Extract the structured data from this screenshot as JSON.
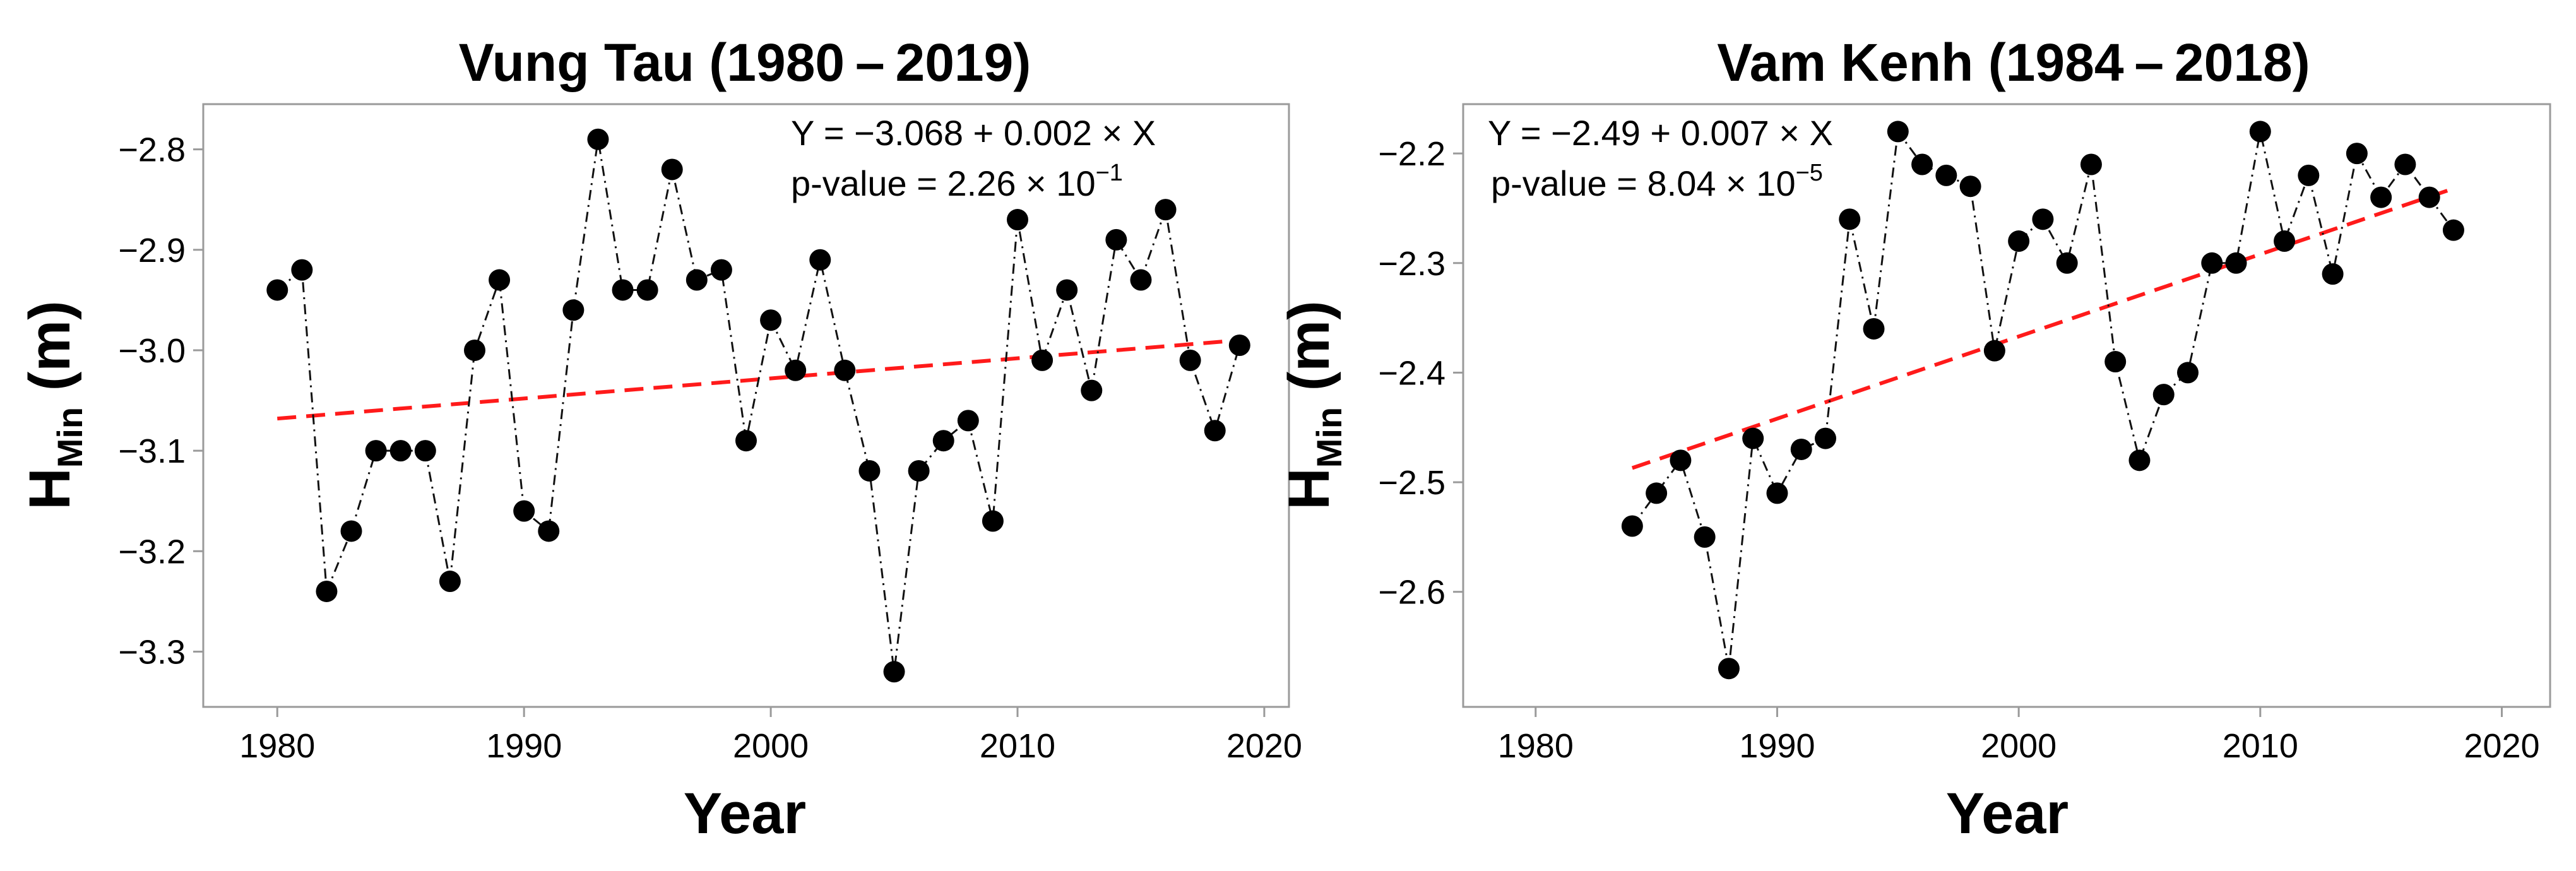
{
  "chart_data": [
    {
      "type": "line",
      "title": "Vung Tau (1980 – 2019)",
      "xlabel": "Year",
      "ylabel": {
        "main": "H",
        "subscript": "Min",
        "unit": "(m)"
      },
      "xlim": [
        1977,
        2021
      ],
      "ylim": [
        -3.355,
        -2.755
      ],
      "xticks": [
        1980,
        1990,
        2000,
        2010,
        2020
      ],
      "xtick_labels": [
        "1980",
        "1990",
        "2000",
        "2010",
        "2020"
      ],
      "yticks": [
        -2.8,
        -2.9,
        -3.0,
        -3.1,
        -3.2,
        -3.3
      ],
      "ytick_labels": [
        "−2.8",
        "−2.9",
        "−3.0",
        "−3.1",
        "−3.2",
        "−3.3"
      ],
      "grid": false,
      "series": [
        {
          "name": "H_Min",
          "style": "dash-dot black with filled circle markers",
          "x": [
            1980,
            1981,
            1982,
            1983,
            1984,
            1985,
            1986,
            1987,
            1988,
            1989,
            1990,
            1991,
            1992,
            1993,
            1994,
            1995,
            1996,
            1997,
            1998,
            1999,
            2000,
            2001,
            2002,
            2003,
            2004,
            2005,
            2006,
            2007,
            2008,
            2009,
            2010,
            2011,
            2012,
            2013,
            2014,
            2015,
            2016,
            2017,
            2018,
            2019
          ],
          "y": [
            -2.94,
            -2.92,
            -3.24,
            -3.18,
            -3.1,
            -3.1,
            -3.1,
            -3.23,
            -3.0,
            -2.93,
            -3.16,
            -3.18,
            -2.96,
            -2.79,
            -2.94,
            -2.94,
            -2.82,
            -2.93,
            -2.92,
            -3.09,
            -2.97,
            -3.02,
            -2.91,
            -3.02,
            -3.12,
            -3.32,
            -3.12,
            -3.09,
            -3.07,
            -3.17,
            -2.87,
            -3.01,
            -2.94,
            -3.04,
            -2.89,
            -2.93,
            -2.86,
            -3.01,
            -3.08,
            -2.995
          ]
        }
      ],
      "trend": {
        "name": "linear trend",
        "color": "#ff1a1a",
        "x": [
          1980,
          2019
        ],
        "intercept": -3.068,
        "slope": 0.002
      },
      "annotation": {
        "equation": "Y = −3.068 + 0.002 × X",
        "pvalue_base": "p-value = 2.26 × 10",
        "pvalue_exp": "−1"
      }
    },
    {
      "type": "line",
      "title": "Vam Kenh (1984 – 2018)",
      "xlabel": "Year",
      "ylabel": {
        "main": "H",
        "subscript": "Min",
        "unit": "(m)"
      },
      "xlim": [
        1977,
        2022
      ],
      "ylim": [
        -2.705,
        -2.155
      ],
      "xticks": [
        1980,
        1990,
        2000,
        2010,
        2020
      ],
      "xtick_labels": [
        "1980",
        "1990",
        "2000",
        "2010",
        "2020"
      ],
      "yticks": [
        -2.2,
        -2.3,
        -2.4,
        -2.5,
        -2.6
      ],
      "ytick_labels": [
        "−2.2",
        "−2.3",
        "−2.4",
        "−2.5",
        "−2.6"
      ],
      "grid": false,
      "series": [
        {
          "name": "H_Min",
          "style": "dash-dot black with filled circle markers",
          "x": [
            1984,
            1985,
            1986,
            1987,
            1988,
            1989,
            1990,
            1991,
            1992,
            1993,
            1994,
            1995,
            1996,
            1997,
            1998,
            1999,
            2000,
            2001,
            2002,
            2003,
            2004,
            2005,
            2006,
            2007,
            2008,
            2009,
            2010,
            2011,
            2012,
            2013,
            2014,
            2015,
            2016,
            2017,
            2018
          ],
          "y": [
            -2.54,
            -2.51,
            -2.48,
            -2.55,
            -2.67,
            -2.46,
            -2.51,
            -2.47,
            -2.46,
            -2.26,
            -2.36,
            -2.18,
            -2.21,
            -2.22,
            -2.23,
            -2.38,
            -2.28,
            -2.26,
            -2.3,
            -2.21,
            -2.39,
            -2.48,
            -2.42,
            -2.4,
            -2.3,
            -2.3,
            -2.18,
            -2.28,
            -2.22,
            -2.31,
            -2.2,
            -2.24,
            -2.21,
            -2.24,
            -2.27
          ]
        }
      ],
      "trend": {
        "name": "linear trend",
        "color": "#ff1a1a",
        "x": [
          1984,
          2018
        ],
        "y": [
          -2.487,
          -2.232
        ]
      },
      "annotation": {
        "equation": "Y = −2.49 + 0.007 × X",
        "pvalue_base": "p-value = 8.04 × 10",
        "pvalue_exp": "−5"
      }
    }
  ]
}
